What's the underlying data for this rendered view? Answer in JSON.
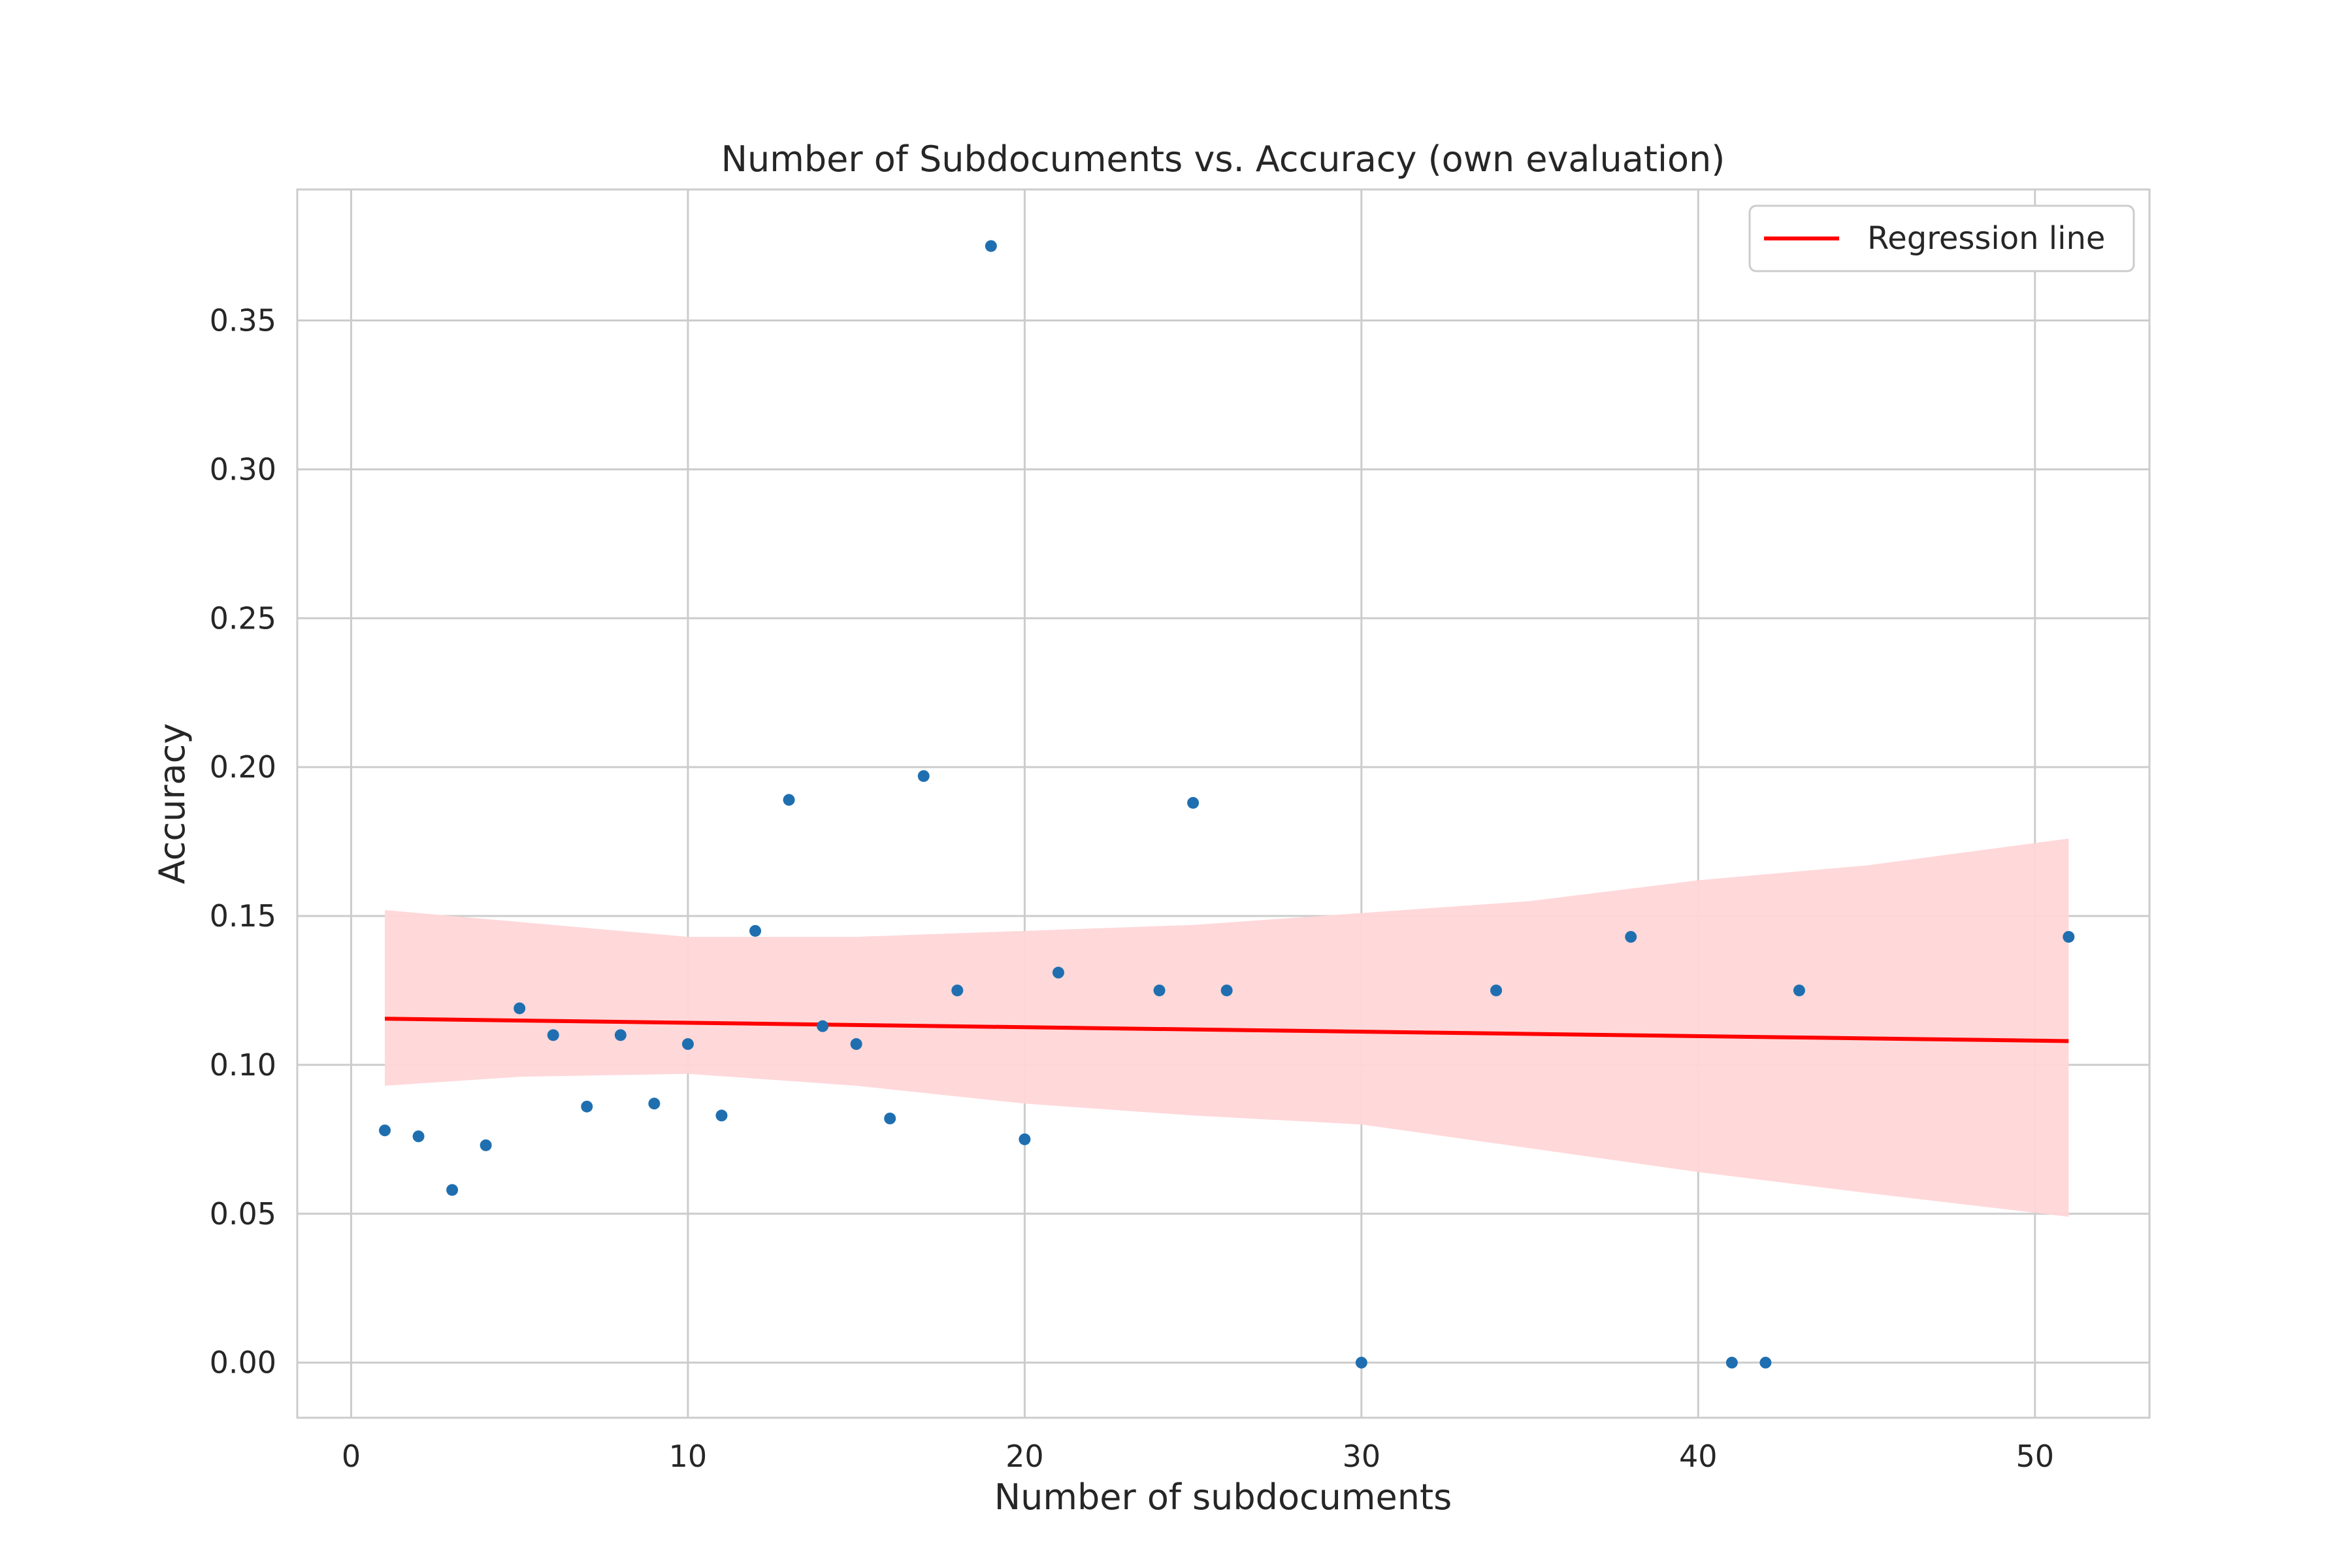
{
  "chart_data": {
    "type": "scatter",
    "title": "Number of Subdocuments vs. Accuracy (own evaluation)",
    "xlabel": "Number of subdocuments",
    "ylabel": "Accuracy",
    "xlim": [
      -1.6,
      53.4
    ],
    "ylim": [
      -0.0185,
      0.394
    ],
    "xticks": [
      0,
      10,
      20,
      30,
      40,
      50
    ],
    "xtick_labels": [
      "0",
      "10",
      "20",
      "30",
      "40",
      "50"
    ],
    "yticks": [
      0.0,
      0.05,
      0.1,
      0.15,
      0.2,
      0.25,
      0.3,
      0.35
    ],
    "ytick_labels": [
      "0.00",
      "0.05",
      "0.10",
      "0.15",
      "0.20",
      "0.25",
      "0.30",
      "0.35"
    ],
    "grid": true,
    "legend_position": "top-right",
    "colors": {
      "points": "#1f6fb0",
      "regression_line": "#ff0000",
      "confidence_band": "#ffd6d8",
      "grid": "#cccccc",
      "text": "#262626"
    },
    "series": [
      {
        "type": "scatter",
        "points": [
          {
            "x": 1,
            "y": 0.078
          },
          {
            "x": 2,
            "y": 0.076
          },
          {
            "x": 3,
            "y": 0.058
          },
          {
            "x": 4,
            "y": 0.073
          },
          {
            "x": 5,
            "y": 0.119
          },
          {
            "x": 6,
            "y": 0.11
          },
          {
            "x": 7,
            "y": 0.086
          },
          {
            "x": 8,
            "y": 0.11
          },
          {
            "x": 9,
            "y": 0.087
          },
          {
            "x": 10,
            "y": 0.107
          },
          {
            "x": 11,
            "y": 0.083
          },
          {
            "x": 12,
            "y": 0.145
          },
          {
            "x": 13,
            "y": 0.189
          },
          {
            "x": 14,
            "y": 0.113
          },
          {
            "x": 15,
            "y": 0.107
          },
          {
            "x": 16,
            "y": 0.082
          },
          {
            "x": 17,
            "y": 0.197
          },
          {
            "x": 18,
            "y": 0.125
          },
          {
            "x": 19,
            "y": 0.375
          },
          {
            "x": 20,
            "y": 0.075
          },
          {
            "x": 21,
            "y": 0.131
          },
          {
            "x": 24,
            "y": 0.125
          },
          {
            "x": 25,
            "y": 0.188
          },
          {
            "x": 26,
            "y": 0.125
          },
          {
            "x": 30,
            "y": 0.0
          },
          {
            "x": 34,
            "y": 0.125
          },
          {
            "x": 38,
            "y": 0.143
          },
          {
            "x": 41,
            "y": 0.0
          },
          {
            "x": 42,
            "y": 0.0
          },
          {
            "x": 43,
            "y": 0.125
          },
          {
            "x": 51,
            "y": 0.143
          }
        ]
      },
      {
        "type": "line",
        "name": "Regression line",
        "x": [
          1,
          51
        ],
        "y": [
          0.1155,
          0.108
        ]
      },
      {
        "type": "band",
        "x": [
          1,
          5,
          10,
          15,
          20,
          25,
          30,
          35,
          40,
          45,
          51
        ],
        "upper": [
          0.152,
          0.148,
          0.143,
          0.143,
          0.145,
          0.147,
          0.151,
          0.155,
          0.162,
          0.167,
          0.176
        ],
        "lower": [
          0.093,
          0.096,
          0.097,
          0.093,
          0.087,
          0.083,
          0.08,
          0.072,
          0.064,
          0.057,
          0.049
        ]
      }
    ]
  }
}
